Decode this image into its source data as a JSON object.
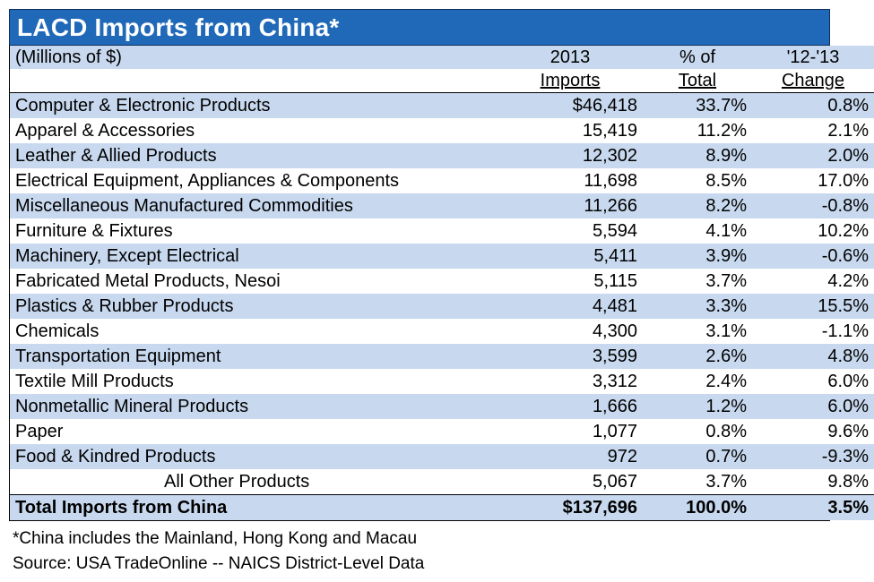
{
  "title": "LACD Imports from China*",
  "header": {
    "units": "(Millions of $)",
    "col_imports_line1": "2013",
    "col_imports_line2": "Imports",
    "col_pct_line1": "% of",
    "col_pct_line2": "Total",
    "col_chg_line1": "'12-'13",
    "col_chg_line2": "Change"
  },
  "rows": [
    {
      "product": "Computer & Electronic Products",
      "imports": "$46,418",
      "pct": "33.7%",
      "change": "0.8%"
    },
    {
      "product": "Apparel & Accessories",
      "imports": "15,419",
      "pct": "11.2%",
      "change": "2.1%"
    },
    {
      "product": "Leather & Allied Products",
      "imports": "12,302",
      "pct": "8.9%",
      "change": "2.0%"
    },
    {
      "product": "Electrical Equipment, Appliances & Components",
      "imports": "11,698",
      "pct": "8.5%",
      "change": "17.0%"
    },
    {
      "product": "Miscellaneous Manufactured Commodities",
      "imports": "11,266",
      "pct": "8.2%",
      "change": "-0.8%"
    },
    {
      "product": "Furniture & Fixtures",
      "imports": "5,594",
      "pct": "4.1%",
      "change": "10.2%"
    },
    {
      "product": "Machinery, Except Electrical",
      "imports": "5,411",
      "pct": "3.9%",
      "change": "-0.6%"
    },
    {
      "product": "Fabricated Metal Products, Nesoi",
      "imports": "5,115",
      "pct": "3.7%",
      "change": "4.2%"
    },
    {
      "product": "Plastics & Rubber Products",
      "imports": "4,481",
      "pct": "3.3%",
      "change": "15.5%"
    },
    {
      "product": "Chemicals",
      "imports": "4,300",
      "pct": "3.1%",
      "change": "-1.1%"
    },
    {
      "product": "Transportation Equipment",
      "imports": "3,599",
      "pct": "2.6%",
      "change": "4.8%"
    },
    {
      "product": "Textile Mill Products",
      "imports": "3,312",
      "pct": "2.4%",
      "change": "6.0%"
    },
    {
      "product": "Nonmetallic Mineral Products",
      "imports": "1,666",
      "pct": "1.2%",
      "change": "6.0%"
    },
    {
      "product": "Paper",
      "imports": "1,077",
      "pct": "0.8%",
      "change": "9.6%"
    },
    {
      "product": "Food & Kindred Products",
      "imports": "972",
      "pct": "0.7%",
      "change": "-9.3%"
    },
    {
      "product": "All Other Products",
      "imports": "5,067",
      "pct": "3.7%",
      "change": "9.8%"
    }
  ],
  "total": {
    "product": "Total Imports from China",
    "imports": "$137,696",
    "pct": "100.0%",
    "change": "3.5%"
  },
  "footnote": "*China includes the Mainland, Hong Kong and Macau",
  "source": "Source: USA TradeOnline -- NAICS District-Level Data",
  "colors": {
    "title_bg": "#1F69B8",
    "band": "#C8D9EF"
  }
}
